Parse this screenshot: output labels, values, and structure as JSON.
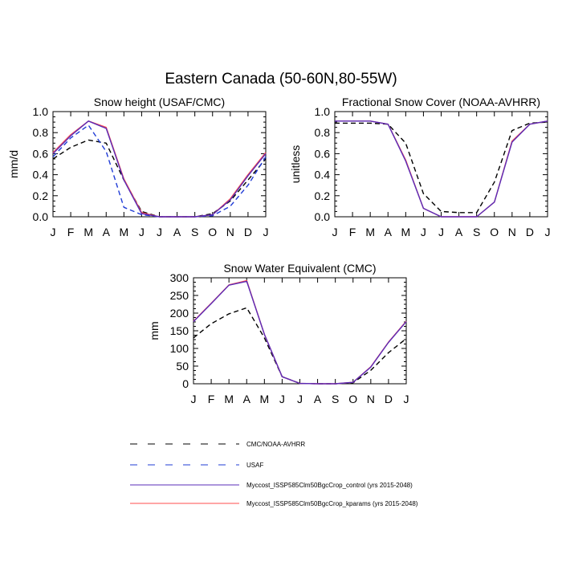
{
  "figure": {
    "title": "Eastern Canada (50-60N,80-55W)"
  },
  "colors": {
    "obs": "#000000",
    "usaf": "#1f3bd6",
    "control": "#5a2cb8",
    "kparams": "#ff4d4d"
  },
  "legend": {
    "placement": "bottom-center",
    "entries": [
      {
        "key": "obs",
        "label": "CMC/NOAA-AVHRR",
        "style": "dashed",
        "color": "#000000"
      },
      {
        "key": "usaf",
        "label": "USAF",
        "style": "dashed",
        "color": "#1f3bd6"
      },
      {
        "key": "control",
        "label": "Myccost_ISSP585Clm50BgcCrop_control (yrs 2015-2048)",
        "style": "solid",
        "color": "#5a2cb8"
      },
      {
        "key": "kparams",
        "label": "Myccost_ISSP585Clm50BgcCrop_kparams (yrs 2015-2048)",
        "style": "solid",
        "color": "#ff4d4d"
      }
    ]
  },
  "chart_data": [
    {
      "id": "snow-height",
      "type": "line",
      "title": "Snow height (USAF/CMC)",
      "xlabel": "",
      "ylabel": "mm/d",
      "x": [
        "J",
        "F",
        "M",
        "A",
        "M",
        "J",
        "J",
        "A",
        "S",
        "O",
        "N",
        "D",
        "J"
      ],
      "ylim": [
        0,
        1.0
      ],
      "yticks": [
        0.0,
        0.2,
        0.4,
        0.6,
        0.8,
        1.0
      ],
      "ytick_labels": [
        "0.0",
        "0.2",
        "0.4",
        "0.6",
        "0.8",
        "1.0"
      ],
      "series": [
        {
          "key": "obs",
          "values": [
            0.55,
            0.66,
            0.73,
            0.7,
            0.35,
            0.05,
            0.0,
            0.0,
            0.0,
            0.03,
            0.15,
            0.35,
            0.55
          ]
        },
        {
          "key": "usaf",
          "values": [
            0.57,
            0.75,
            0.87,
            0.62,
            0.09,
            0.02,
            0.0,
            0.0,
            0.0,
            0.01,
            0.1,
            0.3,
            0.57
          ]
        },
        {
          "key": "kparams",
          "values": [
            0.61,
            0.78,
            0.91,
            0.85,
            0.36,
            0.04,
            0.0,
            0.0,
            0.0,
            0.02,
            0.17,
            0.4,
            0.61
          ]
        },
        {
          "key": "control",
          "values": [
            0.6,
            0.77,
            0.91,
            0.84,
            0.35,
            0.03,
            0.0,
            0.0,
            0.0,
            0.02,
            0.16,
            0.39,
            0.6
          ]
        }
      ]
    },
    {
      "id": "snow-cover",
      "type": "line",
      "title": "Fractional Snow Cover (NOAA-AVHRR)",
      "xlabel": "",
      "ylabel": "unitless",
      "x": [
        "J",
        "F",
        "M",
        "A",
        "M",
        "J",
        "J",
        "A",
        "S",
        "O",
        "N",
        "D",
        "J"
      ],
      "ylim": [
        0,
        1.0
      ],
      "yticks": [
        0.0,
        0.2,
        0.4,
        0.6,
        0.8,
        1.0
      ],
      "ytick_labels": [
        "0.0",
        "0.2",
        "0.4",
        "0.6",
        "0.8",
        "1.0"
      ],
      "series": [
        {
          "key": "obs",
          "values": [
            0.89,
            0.89,
            0.89,
            0.88,
            0.7,
            0.22,
            0.05,
            0.04,
            0.04,
            0.33,
            0.82,
            0.89,
            0.9
          ]
        },
        {
          "key": "kparams",
          "values": [
            0.91,
            0.91,
            0.91,
            0.88,
            0.54,
            0.08,
            0.0,
            0.0,
            0.0,
            0.14,
            0.72,
            0.88,
            0.91
          ]
        },
        {
          "key": "control",
          "values": [
            0.91,
            0.91,
            0.91,
            0.88,
            0.53,
            0.08,
            0.0,
            0.0,
            0.0,
            0.14,
            0.71,
            0.88,
            0.91
          ]
        }
      ]
    },
    {
      "id": "swe",
      "type": "line",
      "title": "Snow Water Equivalent (CMC)",
      "xlabel": "",
      "ylabel": "mm",
      "x": [
        "J",
        "F",
        "M",
        "A",
        "M",
        "J",
        "J",
        "A",
        "S",
        "O",
        "N",
        "D",
        "J"
      ],
      "ylim": [
        0,
        300
      ],
      "yticks": [
        0,
        50,
        100,
        150,
        200,
        250,
        300
      ],
      "ytick_labels": [
        "0",
        "50",
        "100",
        "150",
        "200",
        "250",
        "300"
      ],
      "series": [
        {
          "key": "obs",
          "values": [
            130,
            170,
            198,
            215,
            130,
            20,
            1,
            0,
            0,
            3,
            38,
            88,
            128
          ]
        },
        {
          "key": "kparams",
          "values": [
            177,
            228,
            280,
            292,
            140,
            20,
            1,
            0,
            0,
            4,
            48,
            118,
            177
          ]
        },
        {
          "key": "control",
          "values": [
            176,
            227,
            279,
            290,
            140,
            20,
            1,
            0,
            0,
            4,
            47,
            117,
            176
          ]
        }
      ]
    }
  ]
}
